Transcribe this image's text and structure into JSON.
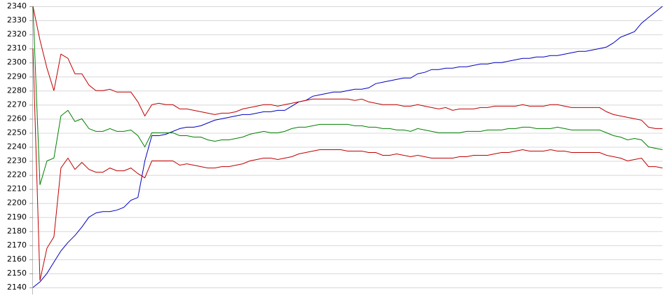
{
  "chart_data": {
    "type": "line",
    "ylim": [
      2140,
      2340
    ],
    "yticks": [
      2140,
      2150,
      2160,
      2170,
      2180,
      2190,
      2200,
      2210,
      2220,
      2230,
      2240,
      2250,
      2260,
      2270,
      2280,
      2290,
      2300,
      2310,
      2320,
      2330,
      2340
    ],
    "grid": true,
    "series": [
      {
        "color": "#0000c0",
        "values": [
          2140,
          2144,
          2150,
          2158,
          2166,
          2172,
          2177,
          2183,
          2190,
          2193,
          2194,
          2194,
          2195,
          2197,
          2202,
          2204,
          2230,
          2248,
          2248,
          2249,
          2251,
          2253,
          2254,
          2254,
          2255,
          2257,
          2259,
          2260,
          2261,
          2262,
          2263,
          2263,
          2264,
          2265,
          2265,
          2266,
          2266,
          2269,
          2272,
          2273,
          2276,
          2277,
          2278,
          2279,
          2279,
          2280,
          2281,
          2281,
          2282,
          2285,
          2286,
          2287,
          2288,
          2289,
          2289,
          2292,
          2293,
          2295,
          2295,
          2296,
          2296,
          2297,
          2297,
          2298,
          2299,
          2299,
          2300,
          2300,
          2301,
          2302,
          2303,
          2303,
          2304,
          2304,
          2305,
          2305,
          2306,
          2307,
          2308,
          2308,
          2309,
          2310,
          2311,
          2314,
          2318,
          2320,
          2322,
          2328,
          2332,
          2336,
          2340
        ]
      },
      {
        "color": "#008000",
        "values": [
          2340,
          2213,
          2230,
          2232,
          2262,
          2266,
          2258,
          2260,
          2253,
          2251,
          2251,
          2253,
          2251,
          2251,
          2252,
          2248,
          2240,
          2250,
          2250,
          2250,
          2250,
          2248,
          2248,
          2247,
          2247,
          2245,
          2244,
          2245,
          2245,
          2246,
          2247,
          2249,
          2250,
          2251,
          2250,
          2250,
          2251,
          2253,
          2254,
          2254,
          2255,
          2256,
          2256,
          2256,
          2256,
          2256,
          2255,
          2255,
          2254,
          2254,
          2253,
          2253,
          2252,
          2252,
          2251,
          2253,
          2252,
          2251,
          2250,
          2250,
          2250,
          2250,
          2251,
          2251,
          2251,
          2252,
          2252,
          2252,
          2253,
          2253,
          2254,
          2254,
          2253,
          2253,
          2253,
          2254,
          2253,
          2252,
          2252,
          2252,
          2252,
          2252,
          2250,
          2248,
          2247,
          2245,
          2246,
          2245,
          2240,
          2239,
          2238
        ]
      },
      {
        "color": "#c00000",
        "values": [
          2340,
          2316,
          2296,
          2280,
          2306,
          2303,
          2292,
          2292,
          2284,
          2280,
          2280,
          2281,
          2279,
          2279,
          2279,
          2272,
          2262,
          2270,
          2271,
          2270,
          2270,
          2267,
          2267,
          2266,
          2265,
          2264,
          2263,
          2264,
          2264,
          2265,
          2267,
          2268,
          2269,
          2270,
          2270,
          2269,
          2270,
          2271,
          2272,
          2273,
          2274,
          2274,
          2274,
          2274,
          2274,
          2274,
          2273,
          2274,
          2272,
          2271,
          2270,
          2270,
          2270,
          2269,
          2269,
          2270,
          2269,
          2268,
          2267,
          2268,
          2266,
          2267,
          2267,
          2267,
          2268,
          2268,
          2269,
          2269,
          2269,
          2269,
          2270,
          2269,
          2269,
          2269,
          2270,
          2270,
          2269,
          2268,
          2268,
          2268,
          2268,
          2268,
          2265,
          2263,
          2262,
          2261,
          2260,
          2259,
          2254,
          2253,
          2253
        ]
      },
      {
        "color": "#c00000",
        "values": [
          2310,
          2145,
          2168,
          2176,
          2225,
          2232,
          2224,
          2229,
          2224,
          2222,
          2222,
          2225,
          2223,
          2223,
          2225,
          2221,
          2218,
          2230,
          2230,
          2230,
          2230,
          2227,
          2228,
          2227,
          2226,
          2225,
          2225,
          2226,
          2226,
          2227,
          2228,
          2230,
          2231,
          2232,
          2232,
          2231,
          2232,
          2233,
          2235,
          2236,
          2237,
          2238,
          2238,
          2238,
          2238,
          2237,
          2237,
          2237,
          2236,
          2236,
          2234,
          2234,
          2235,
          2234,
          2233,
          2234,
          2233,
          2232,
          2232,
          2232,
          2232,
          2233,
          2233,
          2234,
          2234,
          2234,
          2235,
          2236,
          2236,
          2237,
          2238,
          2237,
          2237,
          2237,
          2238,
          2237,
          2237,
          2236,
          2236,
          2236,
          2236,
          2236,
          2234,
          2233,
          2232,
          2230,
          2231,
          2232,
          2226,
          2226,
          2225
        ]
      }
    ]
  }
}
